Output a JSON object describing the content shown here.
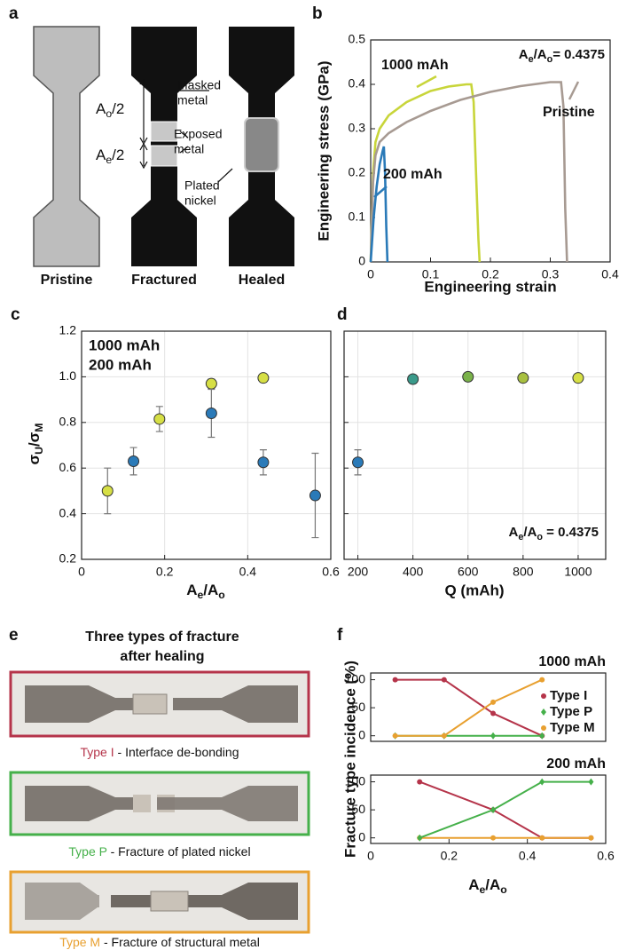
{
  "diagram": {
    "panel": "a",
    "specimens": [
      "Pristine",
      "Fractured",
      "Healed"
    ],
    "callouts": [
      [
        "Masked",
        "metal"
      ],
      [
        "Exposed",
        "metal"
      ],
      [
        "Plated",
        "nickel"
      ]
    ],
    "lengths": [
      [
        "A",
        {
          "sub": "o"
        },
        "/2"
      ],
      [
        "A",
        {
          "sub": "e"
        },
        "/2"
      ]
    ]
  },
  "photos": {
    "panel": "e",
    "title": [
      "Three types of fracture",
      "after healing"
    ],
    "items": [
      {
        "type": "Type I",
        "desc": " - Interface de-bonding",
        "color": "#b5344a"
      },
      {
        "type": "Type P",
        "desc": " - Fracture of plated nickel",
        "color": "#45b04a"
      },
      {
        "type": "Type M",
        "desc": " - Fracture of structural metal",
        "color": "#e8a030"
      }
    ]
  },
  "chart_data": [
    {
      "type": "line",
      "panel": "b",
      "xlabel": "Engineering strain",
      "ylabel": "Engineering stress (GPa)",
      "xlim": [
        0,
        0.4
      ],
      "ylim": [
        0,
        0.5
      ],
      "xticks": [
        0,
        0.1,
        0.2,
        0.3,
        0.4
      ],
      "yticks": [
        0,
        0.1,
        0.2,
        0.3,
        0.4,
        0.5
      ],
      "annotation": [
        "A",
        {
          "sub": "e"
        },
        "/A",
        {
          "sub": "o"
        },
        "= 0.4375"
      ],
      "grid": false,
      "series": [
        {
          "name": "1000 mAh",
          "color": "#c8d53a",
          "x": [
            0,
            0.004,
            0.008,
            0.015,
            0.03,
            0.06,
            0.1,
            0.13,
            0.16,
            0.168,
            0.172,
            0.176,
            0.18,
            0.182
          ],
          "values": [
            0,
            0.2,
            0.27,
            0.3,
            0.33,
            0.36,
            0.385,
            0.395,
            0.4,
            0.4,
            0.36,
            0.2,
            0.05,
            0
          ]
        },
        {
          "name": "Pristine",
          "color": "#a79a92",
          "x": [
            0,
            0.004,
            0.008,
            0.015,
            0.03,
            0.06,
            0.1,
            0.15,
            0.2,
            0.25,
            0.3,
            0.318,
            0.322,
            0.325,
            0.328
          ],
          "values": [
            0,
            0.18,
            0.24,
            0.27,
            0.29,
            0.315,
            0.34,
            0.365,
            0.383,
            0.396,
            0.405,
            0.405,
            0.35,
            0.12,
            0
          ]
        },
        {
          "name": "200 mAh",
          "color": "#2a7ab8",
          "x": [
            0,
            0.005,
            0.01,
            0.015,
            0.02,
            0.022,
            0.024,
            0.026,
            0.028
          ],
          "values": [
            0,
            0.1,
            0.17,
            0.22,
            0.25,
            0.26,
            0.2,
            0.08,
            0
          ]
        }
      ]
    },
    {
      "type": "scatter",
      "panel": "c",
      "xlabel": [
        "A",
        {
          "sub": "e"
        },
        "/A",
        {
          "sub": "o"
        }
      ],
      "ylabel": [
        "σ",
        {
          "sub": "U"
        },
        "/σ",
        {
          "sub": "M"
        }
      ],
      "xlim": [
        0,
        0.6
      ],
      "ylim": [
        0.2,
        1.2
      ],
      "xticks": [
        0,
        0.2,
        0.4,
        0.6
      ],
      "yticks": [
        0.2,
        0.4,
        0.6,
        0.8,
        {
          "value": 1,
          "label": "1.0"
        },
        1.2
      ],
      "grid": true,
      "legend": "upper left",
      "series": [
        {
          "name": "1000 mAh",
          "color": "#d6df45",
          "x": [
            0.0625,
            0.1875,
            0.3125,
            0.4375
          ],
          "values": [
            0.5,
            0.815,
            0.97,
            0.995
          ],
          "errors": [
            0.1,
            0.055,
            0.02,
            0.01
          ]
        },
        {
          "name": "200 mAh",
          "color": "#2a7ab8",
          "x": [
            0.125,
            0.3125,
            0.4375,
            0.5625
          ],
          "values": [
            0.63,
            0.84,
            0.625,
            0.48
          ],
          "errors": [
            0.06,
            0.105,
            0.055,
            0.185
          ]
        }
      ]
    },
    {
      "type": "scatter",
      "panel": "d",
      "xlabel": "Q (mAh)",
      "xlim": [
        150,
        1100
      ],
      "ylim": [
        0.2,
        1.2
      ],
      "xticks": [
        200,
        400,
        600,
        800,
        1000
      ],
      "yticks": [
        0.2,
        0.4,
        0.6,
        0.8,
        1,
        1.2
      ],
      "ytick_labels": false,
      "grid": true,
      "annotation": [
        "A",
        {
          "sub": "e"
        },
        "/A",
        {
          "sub": "o"
        },
        " = 0.4375"
      ],
      "series": [
        {
          "colors": [
            "#2a7ab8",
            "#3a9a8a",
            "#7ab24a",
            "#a8c040",
            "#d6df45"
          ],
          "x": [
            200,
            400,
            600,
            800,
            1000
          ],
          "values": [
            0.625,
            0.99,
            1.0,
            0.995,
            0.995
          ],
          "errors": [
            0.055,
            null,
            null,
            null,
            null
          ]
        }
      ]
    },
    {
      "type": "line",
      "panel": "f",
      "title": "1000 mAh",
      "xlim": [
        0,
        0.6
      ],
      "ylim": [
        -10,
        112
      ],
      "yticks": [
        0,
        50,
        100
      ],
      "grid": false,
      "legend": "right",
      "series": [
        {
          "name": "Type I",
          "color": "#b5344a",
          "marker": "circle",
          "x": [
            0.0625,
            0.1875,
            0.3125,
            0.4375
          ],
          "values": [
            100,
            100,
            40,
            0
          ]
        },
        {
          "name": "Type P",
          "color": "#45b04a",
          "marker": "diamond",
          "x": [
            0.0625,
            0.1875,
            0.3125,
            0.4375
          ],
          "values": [
            0,
            0,
            0,
            0
          ]
        },
        {
          "name": "Type M",
          "color": "#e8a030",
          "marker": "circle",
          "x": [
            0.0625,
            0.1875,
            0.3125,
            0.4375
          ],
          "values": [
            0,
            0,
            60,
            100
          ]
        }
      ]
    },
    {
      "type": "line",
      "title": "200 mAh",
      "xlabel": [
        "A",
        {
          "sub": "e"
        },
        "/A",
        {
          "sub": "o"
        }
      ],
      "ylabel": "Fracture type incidence (%)",
      "xlim": [
        0,
        0.6
      ],
      "ylim": [
        -10,
        112
      ],
      "xticks": [
        0,
        0.2,
        0.4,
        0.6
      ],
      "yticks": [
        0,
        50,
        100
      ],
      "grid": false,
      "series": [
        {
          "color": "#b5344a",
          "marker": "circle",
          "x": [
            0.125,
            0.3125,
            0.4375,
            0.5625
          ],
          "values": [
            100,
            50,
            0,
            0
          ]
        },
        {
          "color": "#e8a030",
          "marker": "circle",
          "x": [
            0.125,
            0.3125,
            0.4375,
            0.5625
          ],
          "values": [
            0,
            0,
            0,
            0
          ]
        },
        {
          "color": "#45b04a",
          "marker": "diamond",
          "x": [
            0.125,
            0.3125,
            0.4375,
            0.5625
          ],
          "values": [
            0,
            50,
            100,
            100
          ]
        }
      ]
    }
  ]
}
